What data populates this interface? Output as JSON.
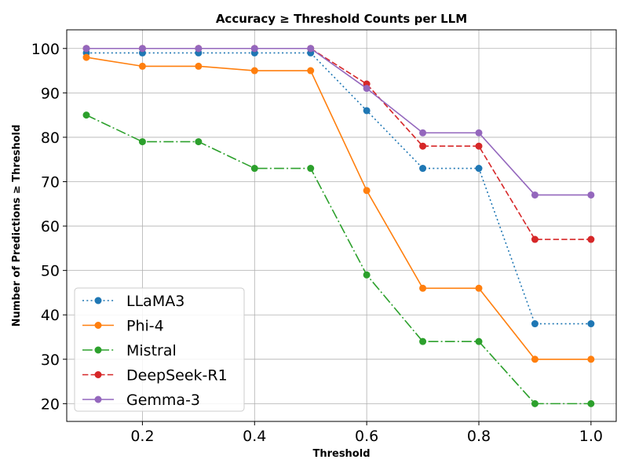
{
  "chart_data": {
    "type": "line",
    "title": "Accuracy ≥ Threshold Counts per LLM",
    "xlabel": "Threshold",
    "ylabel": "Number of Predictions ≥ Threshold",
    "x": [
      0.1,
      0.2,
      0.3,
      0.4,
      0.5,
      0.6,
      0.7,
      0.8,
      0.9,
      1.0
    ],
    "xlim": [
      0.065,
      1.045
    ],
    "ylim": [
      16,
      104.2
    ],
    "xticks": [
      0.2,
      0.4,
      0.6,
      0.8,
      1.0
    ],
    "xtick_labels": [
      "0.2",
      "0.4",
      "0.6",
      "0.8",
      "1.0"
    ],
    "yticks": [
      20,
      30,
      40,
      50,
      60,
      70,
      80,
      90,
      100
    ],
    "ytick_labels": [
      "20",
      "30",
      "40",
      "50",
      "60",
      "70",
      "80",
      "90",
      "100"
    ],
    "grid": true,
    "legend_position": "lower-left",
    "series": [
      {
        "name": "LLaMA3",
        "color": "#1f77b4",
        "dash": "dotted",
        "values": [
          99,
          99,
          99,
          99,
          99,
          86,
          73,
          73,
          38,
          38
        ]
      },
      {
        "name": "Phi-4",
        "color": "#ff7f0e",
        "dash": "solid",
        "values": [
          98,
          96,
          96,
          95,
          95,
          68,
          46,
          46,
          30,
          30
        ]
      },
      {
        "name": "Mistral",
        "color": "#2ca02c",
        "dash": "dashdot",
        "values": [
          85,
          79,
          79,
          73,
          73,
          49,
          34,
          34,
          20,
          20
        ]
      },
      {
        "name": "DeepSeek-R1",
        "color": "#d62728",
        "dash": "dashed",
        "values": [
          100,
          100,
          100,
          100,
          100,
          92,
          78,
          78,
          57,
          57
        ]
      },
      {
        "name": "Gemma-3",
        "color": "#9467bd",
        "dash": "solid",
        "values": [
          100,
          100,
          100,
          100,
          100,
          91,
          81,
          81,
          67,
          67
        ]
      }
    ]
  }
}
